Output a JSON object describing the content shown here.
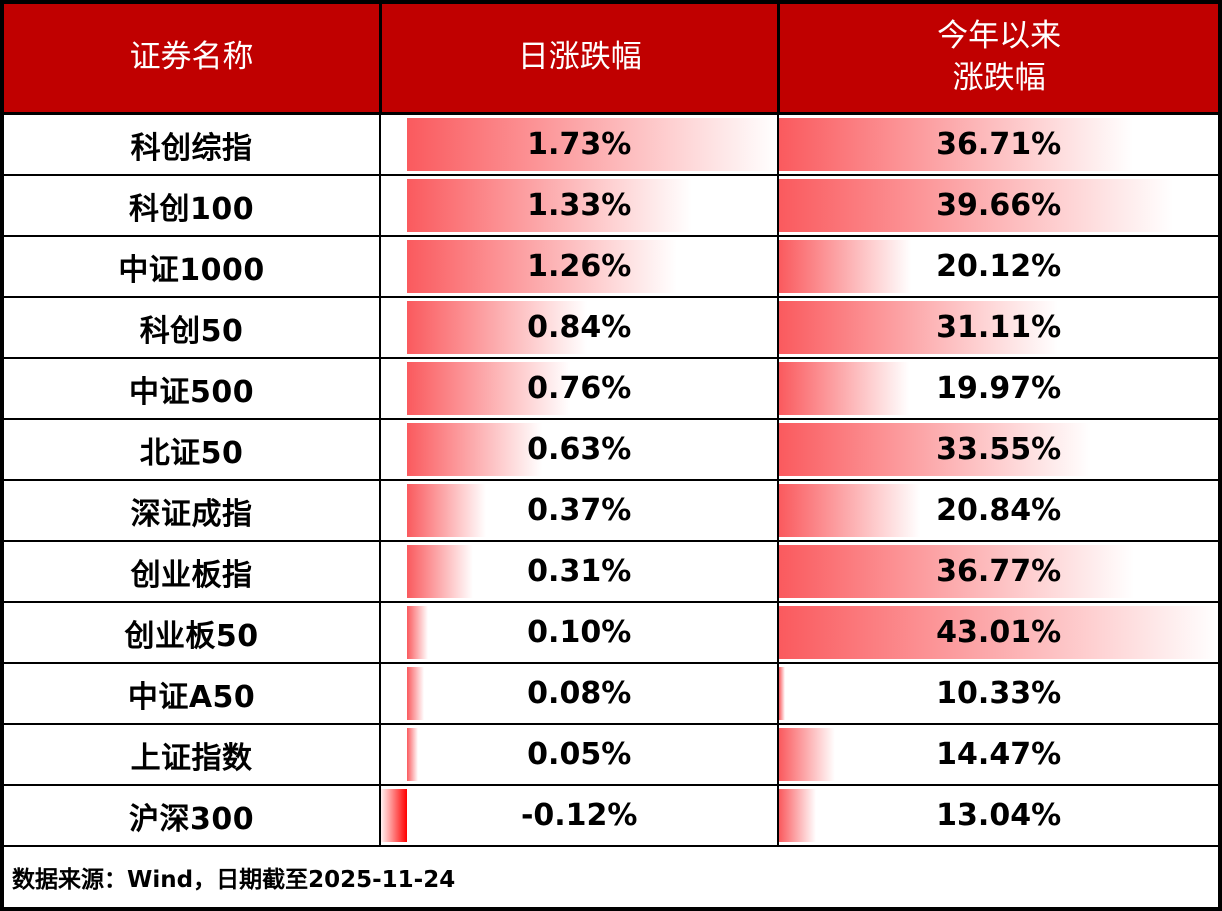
{
  "header": {
    "security": "证券名称",
    "daily": "日涨跌幅",
    "ytd_line1": "今年以来",
    "ytd_line2": "涨跌幅"
  },
  "rows": [
    {
      "name": "科创综指",
      "daily_label": "1.73%",
      "daily_value": 1.73,
      "ytd_label": "36.71%",
      "ytd_value": 36.71
    },
    {
      "name": "科创100",
      "daily_label": "1.33%",
      "daily_value": 1.33,
      "ytd_label": "39.66%",
      "ytd_value": 39.66
    },
    {
      "name": "中证1000",
      "daily_label": "1.26%",
      "daily_value": 1.26,
      "ytd_label": "20.12%",
      "ytd_value": 20.12
    },
    {
      "name": "科创50",
      "daily_label": "0.84%",
      "daily_value": 0.84,
      "ytd_label": "31.11%",
      "ytd_value": 31.11
    },
    {
      "name": "中证500",
      "daily_label": "0.76%",
      "daily_value": 0.76,
      "ytd_label": "19.97%",
      "ytd_value": 19.97
    },
    {
      "name": "北证50",
      "daily_label": "0.63%",
      "daily_value": 0.63,
      "ytd_label": "33.55%",
      "ytd_value": 33.55
    },
    {
      "name": "深证成指",
      "daily_label": "0.37%",
      "daily_value": 0.37,
      "ytd_label": "20.84%",
      "ytd_value": 20.84
    },
    {
      "name": "创业板指",
      "daily_label": "0.31%",
      "daily_value": 0.31,
      "ytd_label": "36.77%",
      "ytd_value": 36.77
    },
    {
      "name": "创业板50",
      "daily_label": "0.10%",
      "daily_value": 0.1,
      "ytd_label": "43.01%",
      "ytd_value": 43.01
    },
    {
      "name": "中证A50",
      "daily_label": "0.08%",
      "daily_value": 0.08,
      "ytd_label": "10.33%",
      "ytd_value": 10.33
    },
    {
      "name": "上证指数",
      "daily_label": "0.05%",
      "daily_value": 0.05,
      "ytd_label": "14.47%",
      "ytd_value": 14.47
    },
    {
      "name": "沪深300",
      "daily_label": "-0.12%",
      "daily_value": -0.12,
      "ytd_label": "13.04%",
      "ytd_value": 13.04
    }
  ],
  "footer": {
    "source": "数据来源：Wind，日期截至2025-11-24"
  },
  "colors": {
    "header_bg": "#c00000",
    "positive_bar": "#fa5a5e",
    "negative_bar": "#ff0000",
    "border": "#000000"
  },
  "chart_data": {
    "type": "table",
    "title": "",
    "categories": [
      "科创综指",
      "科创100",
      "中证1000",
      "科创50",
      "中证500",
      "北证50",
      "深证成指",
      "创业板指",
      "创业板50",
      "中证A50",
      "上证指数",
      "沪深300"
    ],
    "series": [
      {
        "name": "日涨跌幅",
        "values": [
          1.73,
          1.33,
          1.26,
          0.84,
          0.76,
          0.63,
          0.37,
          0.31,
          0.1,
          0.08,
          0.05,
          -0.12
        ]
      },
      {
        "name": "今年以来涨跌幅",
        "values": [
          36.71,
          39.66,
          20.12,
          31.11,
          19.97,
          33.55,
          20.84,
          36.77,
          43.01,
          10.33,
          14.47,
          13.04
        ]
      }
    ],
    "annotations": [
      "数据来源：Wind，日期截至2025-11-24"
    ],
    "layout": "in-cell data bars, gradient red, bar length scaled min-to-max per column; negative values drawn left of axis in solid red"
  }
}
